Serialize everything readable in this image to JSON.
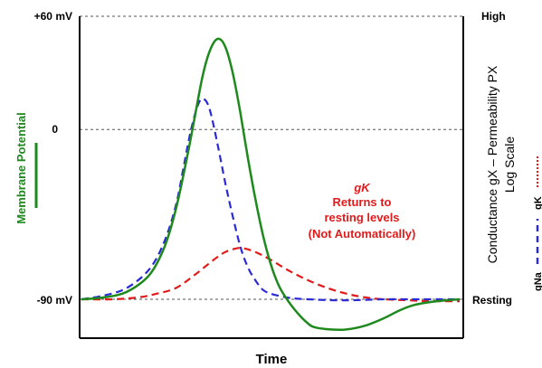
{
  "chart_data": {
    "type": "line",
    "xlabel": "Time",
    "ylabel": "Membrane Potential",
    "y_ticks": [
      "+60 mV",
      "0",
      "-90 mV"
    ],
    "ylim": [
      -110,
      60
    ],
    "xlim": [
      0,
      100
    ],
    "gridlines": [
      60,
      0,
      -90
    ],
    "right_axis": {
      "title_line1": "Conductance gX – Permeability PX",
      "title_line2": "Log Scale",
      "top_label": "High",
      "bottom_label": "Resting"
    },
    "legend": {
      "gk": "gK",
      "gna": "gNa"
    },
    "annotation": {
      "line1": "gK",
      "line2": "Returns to",
      "line3": "resting levels",
      "line4": "(Not Automatically)"
    },
    "colors": {
      "membrane": "#1e8a1e",
      "gna": "#2b2bd6",
      "gk": "#e11b1b",
      "grid": "#555555"
    },
    "series": [
      {
        "key": "membrane",
        "style": "solid",
        "x": [
          0,
          6,
          12,
          18,
          22,
          25,
          28,
          30,
          32,
          34,
          36,
          38,
          40,
          42,
          44,
          46,
          48,
          50,
          52,
          54,
          57,
          60,
          62,
          66,
          70,
          75,
          80,
          84,
          88,
          94,
          100
        ],
        "y": [
          -90,
          -89,
          -86,
          -77,
          -62,
          -42,
          -14,
          7,
          28,
          42,
          48,
          44,
          30,
          9,
          -15,
          -37,
          -56,
          -71,
          -82,
          -89,
          -97,
          -103,
          -105,
          -106,
          -106,
          -104,
          -100,
          -96,
          -93,
          -91,
          -90
        ]
      },
      {
        "key": "gna",
        "style": "dashed",
        "x": [
          0,
          6,
          12,
          18,
          22,
          25,
          27,
          29,
          31,
          32.5,
          34,
          36,
          38,
          40,
          42,
          44,
          46,
          48,
          50,
          53,
          56,
          60,
          66,
          72,
          80,
          88,
          100
        ],
        "y": [
          -90,
          -88,
          -84,
          -74,
          -59,
          -40,
          -20,
          0,
          14,
          16,
          10,
          -8,
          -28,
          -46,
          -62,
          -73,
          -80,
          -85,
          -87,
          -88.5,
          -89.5,
          -90,
          -90.5,
          -90.5,
          -90,
          -90,
          -90
        ]
      },
      {
        "key": "gk",
        "style": "dashed",
        "x": [
          0,
          8,
          15,
          20,
          25,
          30,
          35,
          38,
          41,
          43,
          46,
          50,
          55,
          60,
          65,
          70,
          75,
          80,
          86,
          92,
          100
        ],
        "y": [
          -90,
          -90,
          -89,
          -87,
          -84,
          -77,
          -69,
          -65,
          -63,
          -63,
          -65,
          -69,
          -75,
          -80,
          -84,
          -87,
          -89,
          -90,
          -90.5,
          -91,
          -91
        ]
      }
    ]
  }
}
